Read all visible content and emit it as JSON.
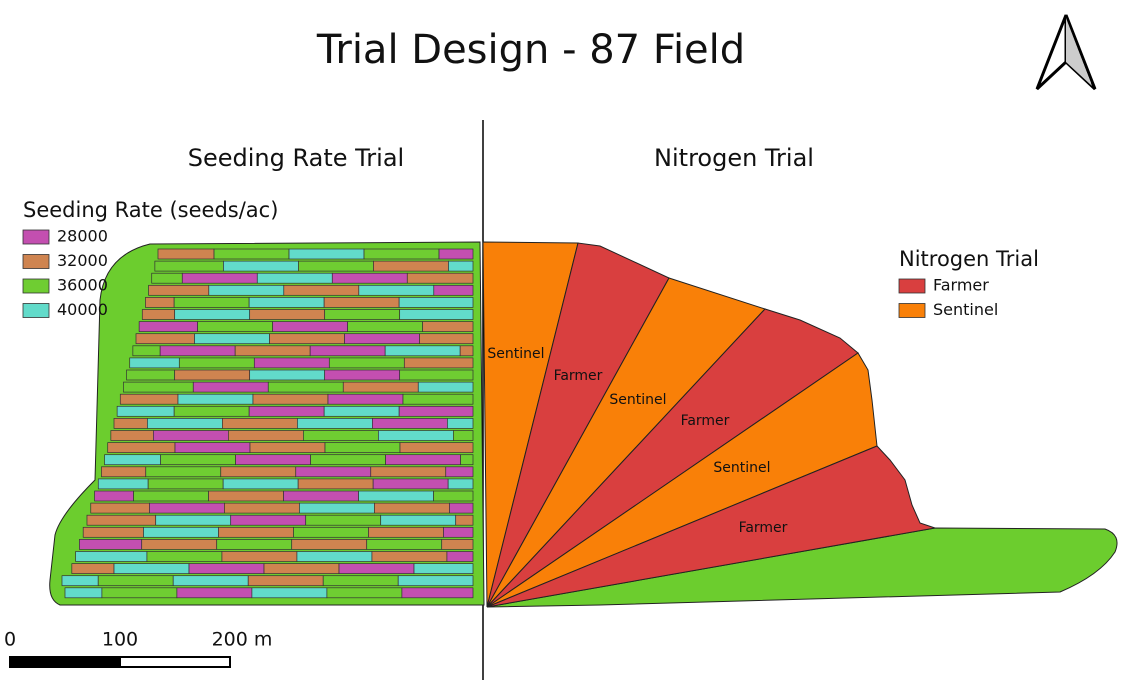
{
  "header": {
    "title": "Trial Design - 87 Field"
  },
  "panels": [
    {
      "title": "Seeding Rate Trial"
    },
    {
      "title": "Nitrogen Trial"
    }
  ],
  "seeding_legend": {
    "title": "Seeding Rate (seeds/ac)",
    "items": [
      {
        "label": "28000",
        "color": "#c34fb0"
      },
      {
        "label": "32000",
        "color": "#cf8450"
      },
      {
        "label": "36000",
        "color": "#6fcd32"
      },
      {
        "label": "40000",
        "color": "#62dbca"
      }
    ]
  },
  "nitrogen_legend": {
    "title": "Nitrogen Trial",
    "items": [
      {
        "label": "Farmer",
        "color": "#d93f3f"
      },
      {
        "label": "Sentinel",
        "color": "#f98008"
      }
    ]
  },
  "wedges": [
    {
      "label": "Sentinel"
    },
    {
      "label": "Farmer"
    },
    {
      "label": "Sentinel"
    },
    {
      "label": "Farmer"
    },
    {
      "label": "Sentinel"
    },
    {
      "label": "Farmer"
    }
  ],
  "scale_bar": {
    "labels": [
      "0",
      "100",
      "200 m"
    ]
  }
}
